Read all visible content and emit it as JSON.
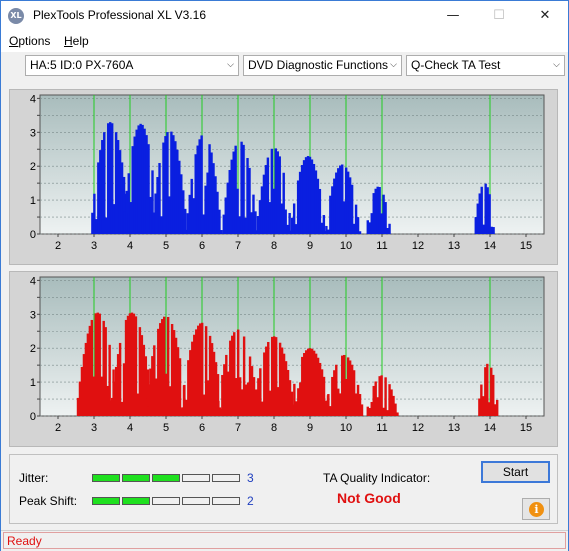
{
  "window": {
    "title": "PlexTools Professional XL V3.16",
    "icon_text": "XL",
    "minimize_glyph": "—",
    "maximize_glyph": "☐",
    "close_glyph": "✕"
  },
  "menu": {
    "options_first": "O",
    "options_rest": "ptions",
    "help_first": "H",
    "help_rest": "elp"
  },
  "toolbar": {
    "drive_select": "HA:5 ID:0  PX-760A",
    "function_select": "DVD Diagnostic Functions",
    "test_select": "Q-Check TA Test",
    "arrow_glyph": "⌵"
  },
  "chart_data": [
    {
      "type": "bar",
      "name": "top-panel",
      "color": "#0a1fe0",
      "x_ticks": [
        2,
        3,
        4,
        5,
        6,
        7,
        8,
        9,
        10,
        11,
        12,
        13,
        14,
        15
      ],
      "y_ticks": [
        0,
        0.5,
        1,
        1.5,
        2,
        2.5,
        3,
        3.5,
        4
      ],
      "ylim": [
        0,
        4.1
      ],
      "xlim": [
        1.5,
        15.5
      ],
      "grid_lines_x": [
        3,
        4,
        5,
        6,
        7,
        8,
        9,
        10,
        11,
        14
      ],
      "grid_color": "#22cc22",
      "background": "#b8c8c8",
      "peaks": [
        {
          "center": 3.45,
          "height": 3.3,
          "width": 0.55
        },
        {
          "center": 4.3,
          "height": 3.25,
          "width": 0.5
        },
        {
          "center": 5.1,
          "height": 3.05,
          "width": 0.5
        },
        {
          "center": 6.05,
          "height": 2.95,
          "width": 0.5
        },
        {
          "center": 7.05,
          "height": 2.75,
          "width": 0.5
        },
        {
          "center": 8.0,
          "height": 2.55,
          "width": 0.5
        },
        {
          "center": 8.95,
          "height": 2.3,
          "width": 0.5
        },
        {
          "center": 9.9,
          "height": 2.05,
          "width": 0.5
        },
        {
          "center": 10.9,
          "height": 1.4,
          "width": 0.35
        },
        {
          "center": 13.85,
          "height": 1.5,
          "width": 0.3
        }
      ]
    },
    {
      "type": "bar",
      "name": "bottom-panel",
      "color": "#e01010",
      "x_ticks": [
        2,
        3,
        4,
        5,
        6,
        7,
        8,
        9,
        10,
        11,
        12,
        13,
        14,
        15
      ],
      "y_ticks": [
        0,
        0.5,
        1,
        1.5,
        2,
        2.5,
        3,
        3.5,
        4
      ],
      "ylim": [
        0,
        4.1
      ],
      "xlim": [
        1.5,
        15.5
      ],
      "grid_lines_x": [
        3,
        4,
        5,
        6,
        7,
        8,
        9,
        10,
        11,
        14
      ],
      "grid_color": "#22cc22",
      "background": "#b8c8c8",
      "peaks": [
        {
          "center": 3.1,
          "height": 3.05,
          "width": 0.6
        },
        {
          "center": 4.05,
          "height": 3.05,
          "width": 0.6
        },
        {
          "center": 5.0,
          "height": 2.95,
          "width": 0.6
        },
        {
          "center": 6.0,
          "height": 2.75,
          "width": 0.6
        },
        {
          "center": 7.0,
          "height": 2.55,
          "width": 0.6
        },
        {
          "center": 8.0,
          "height": 2.35,
          "width": 0.6
        },
        {
          "center": 9.0,
          "height": 2.0,
          "width": 0.6
        },
        {
          "center": 9.95,
          "height": 1.8,
          "width": 0.55
        },
        {
          "center": 11.0,
          "height": 1.2,
          "width": 0.45
        },
        {
          "center": 13.95,
          "height": 1.55,
          "width": 0.3
        }
      ]
    }
  ],
  "results": {
    "jitter_label": "Jitter:",
    "jitter_value": "3",
    "jitter_segments_on": 3,
    "peak_shift_label": "Peak Shift:",
    "peak_shift_value": "2",
    "peak_shift_segments_on": 2,
    "segments_total": 5,
    "ta_label": "TA Quality Indicator:",
    "ta_result": "Not Good"
  },
  "buttons": {
    "start": "Start",
    "info_glyph": "i"
  },
  "status": {
    "text": "Ready"
  }
}
